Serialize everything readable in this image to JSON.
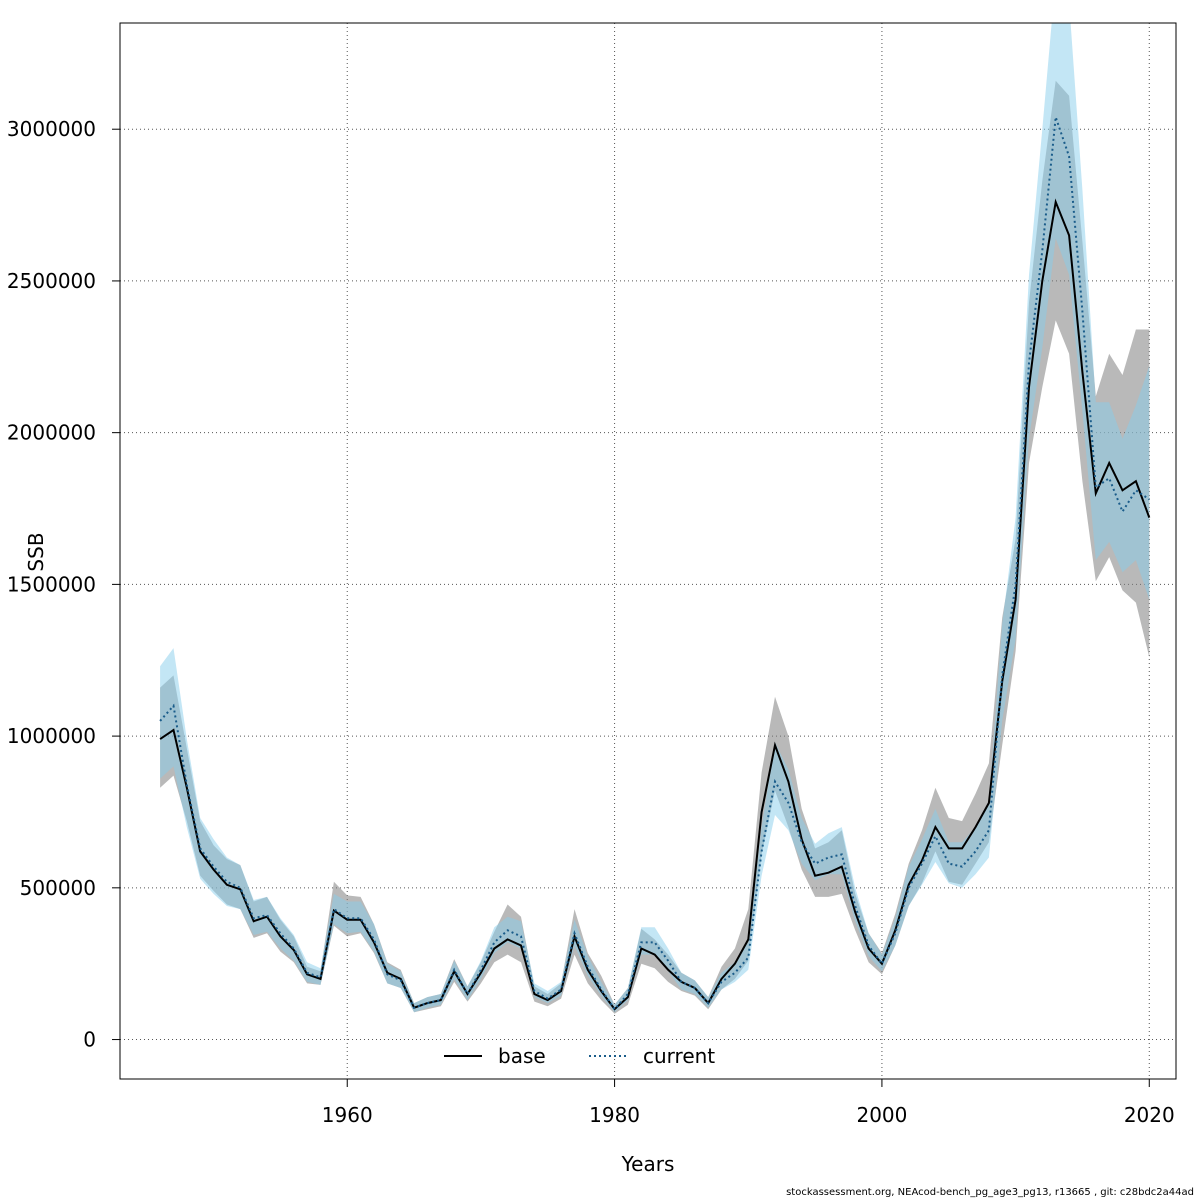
{
  "chart_data": {
    "type": "line",
    "title": "",
    "xlabel": "Years",
    "ylabel": "SSB",
    "xlim": [
      1943,
      2022
    ],
    "ylim": [
      -130000,
      3350000
    ],
    "x_ticks": [
      1960,
      1980,
      2000,
      2020
    ],
    "x_tick_labels": [
      "1960",
      "1980",
      "2000",
      "2020"
    ],
    "y_ticks": [
      0,
      500000,
      1000000,
      1500000,
      2000000,
      2500000,
      3000000
    ],
    "y_tick_labels": [
      "0",
      "500000",
      "1000000",
      "1500000",
      "2000000",
      "2500000",
      "3000000"
    ],
    "grid": true,
    "legend_position": "bottom-center",
    "x": [
      1946,
      1947,
      1948,
      1949,
      1950,
      1951,
      1952,
      1953,
      1954,
      1955,
      1956,
      1957,
      1958,
      1959,
      1960,
      1961,
      1962,
      1963,
      1964,
      1965,
      1966,
      1967,
      1968,
      1969,
      1970,
      1971,
      1972,
      1973,
      1974,
      1975,
      1976,
      1977,
      1978,
      1979,
      1980,
      1981,
      1982,
      1983,
      1984,
      1985,
      1986,
      1987,
      1988,
      1989,
      1990,
      1991,
      1992,
      1993,
      1994,
      1995,
      1996,
      1997,
      1998,
      1999,
      2000,
      2001,
      2002,
      2003,
      2004,
      2005,
      2006,
      2007,
      2008,
      2009,
      2010,
      2011,
      2012,
      2013,
      2014,
      2015,
      2016,
      2017,
      2018,
      2019,
      2020
    ],
    "series": [
      {
        "name": "base",
        "color": "#000000",
        "band_color": "#808080",
        "line_style": "solid",
        "values": [
          990000,
          1020000,
          830000,
          620000,
          560000,
          510000,
          495000,
          390000,
          405000,
          340000,
          295000,
          215000,
          200000,
          425000,
          395000,
          395000,
          320000,
          220000,
          200000,
          105000,
          120000,
          130000,
          225000,
          150000,
          220000,
          300000,
          330000,
          310000,
          150000,
          130000,
          160000,
          340000,
          230000,
          160000,
          100000,
          140000,
          300000,
          280000,
          230000,
          190000,
          170000,
          120000,
          200000,
          250000,
          330000,
          750000,
          970000,
          850000,
          660000,
          540000,
          550000,
          570000,
          420000,
          300000,
          250000,
          360000,
          510000,
          590000,
          700000,
          630000,
          630000,
          700000,
          780000,
          1180000,
          1450000,
          2150000,
          2500000,
          2760000,
          2650000,
          2200000,
          1800000,
          1900000,
          1810000,
          1840000,
          1720000
        ],
        "lower": [
          830000,
          870000,
          720000,
          540000,
          490000,
          445000,
          430000,
          335000,
          350000,
          290000,
          255000,
          185000,
          180000,
          375000,
          340000,
          350000,
          285000,
          185000,
          170000,
          90000,
          100000,
          110000,
          190000,
          125000,
          185000,
          255000,
          280000,
          255000,
          125000,
          110000,
          135000,
          280000,
          185000,
          130000,
          85000,
          115000,
          250000,
          235000,
          190000,
          160000,
          145000,
          100000,
          165000,
          200000,
          260000,
          610000,
          820000,
          700000,
          560000,
          470000,
          470000,
          480000,
          360000,
          255000,
          215000,
          310000,
          440000,
          515000,
          620000,
          520000,
          510000,
          580000,
          650000,
          970000,
          1280000,
          1900000,
          2150000,
          2370000,
          2260000,
          1840000,
          1510000,
          1590000,
          1480000,
          1440000,
          1260000
        ],
        "upper": [
          1160000,
          1200000,
          960000,
          720000,
          640000,
          595000,
          575000,
          455000,
          470000,
          395000,
          340000,
          240000,
          225000,
          520000,
          475000,
          470000,
          380000,
          255000,
          230000,
          120000,
          140000,
          150000,
          265000,
          175000,
          255000,
          355000,
          445000,
          405000,
          175000,
          150000,
          185000,
          430000,
          285000,
          210000,
          115000,
          170000,
          365000,
          330000,
          280000,
          220000,
          195000,
          140000,
          240000,
          300000,
          430000,
          880000,
          1130000,
          1000000,
          760000,
          630000,
          650000,
          690000,
          480000,
          350000,
          285000,
          415000,
          580000,
          690000,
          830000,
          730000,
          720000,
          810000,
          910000,
          1390000,
          1650000,
          2430000,
          2830000,
          3160000,
          3110000,
          2630000,
          2120000,
          2260000,
          2190000,
          2340000,
          2340000
        ]
      },
      {
        "name": "current",
        "color": "#1a5c8a",
        "band_color": "#87ceeb",
        "line_style": "dotted",
        "values": [
          1050000,
          1100000,
          840000,
          630000,
          570000,
          520000,
          500000,
          400000,
          410000,
          350000,
          300000,
          220000,
          205000,
          430000,
          400000,
          400000,
          330000,
          215000,
          195000,
          105000,
          120000,
          130000,
          230000,
          150000,
          230000,
          320000,
          360000,
          340000,
          160000,
          135000,
          165000,
          350000,
          240000,
          165000,
          100000,
          150000,
          320000,
          320000,
          260000,
          190000,
          170000,
          120000,
          190000,
          220000,
          270000,
          620000,
          850000,
          780000,
          650000,
          580000,
          600000,
          610000,
          440000,
          310000,
          250000,
          350000,
          500000,
          580000,
          670000,
          580000,
          570000,
          620000,
          690000,
          1200000,
          1500000,
          2230000,
          2600000,
          3040000,
          2910000,
          2400000,
          1820000,
          1850000,
          1740000,
          1810000,
          1780000
        ],
        "lower": [
          860000,
          900000,
          700000,
          530000,
          480000,
          440000,
          430000,
          345000,
          355000,
          300000,
          260000,
          190000,
          180000,
          380000,
          350000,
          355000,
          290000,
          185000,
          170000,
          90000,
          105000,
          115000,
          200000,
          130000,
          200000,
          285000,
          320000,
          300000,
          140000,
          120000,
          145000,
          310000,
          210000,
          145000,
          90000,
          130000,
          280000,
          280000,
          225000,
          165000,
          150000,
          105000,
          165000,
          190000,
          230000,
          540000,
          740000,
          690000,
          580000,
          525000,
          545000,
          545000,
          390000,
          275000,
          225000,
          310000,
          440000,
          510000,
          585000,
          515000,
          500000,
          545000,
          600000,
          1050000,
          1320000,
          1980000,
          2280000,
          2640000,
          2520000,
          2070000,
          1580000,
          1640000,
          1540000,
          1580000,
          1450000
        ],
        "upper": [
          1230000,
          1290000,
          990000,
          730000,
          660000,
          600000,
          575000,
          460000,
          470000,
          400000,
          345000,
          255000,
          235000,
          480000,
          455000,
          455000,
          380000,
          250000,
          225000,
          120000,
          140000,
          150000,
          260000,
          175000,
          260000,
          370000,
          405000,
          390000,
          185000,
          160000,
          190000,
          395000,
          275000,
          190000,
          115000,
          170000,
          370000,
          370000,
          300000,
          220000,
          195000,
          140000,
          220000,
          255000,
          320000,
          700000,
          980000,
          890000,
          730000,
          645000,
          680000,
          700000,
          500000,
          350000,
          280000,
          400000,
          570000,
          660000,
          760000,
          650000,
          650000,
          700000,
          780000,
          1370000,
          1720000,
          2520000,
          3000000,
          3500000,
          3420000,
          2800000,
          2100000,
          2100000,
          1980000,
          2090000,
          2220000
        ]
      }
    ]
  },
  "footer_text": "stockassessment.org, NEAcod-bench_pg_age3_pg13, r13665 , git: c28bdc2a44ad"
}
